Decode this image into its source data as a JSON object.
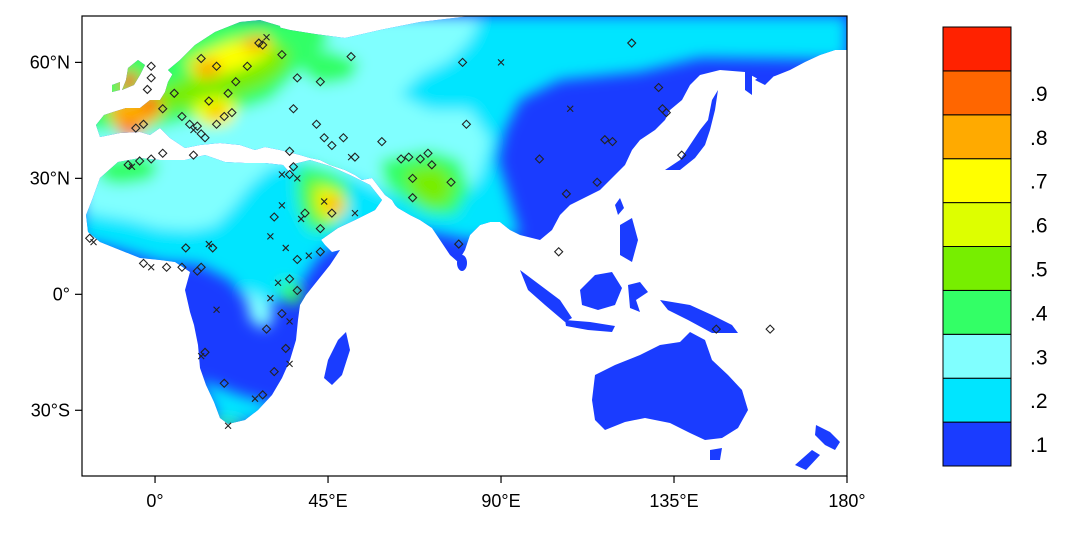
{
  "map": {
    "projection": "cylindrical-equidistant",
    "lon_range": [
      -19,
      180
    ],
    "lat_range": [
      -47,
      72
    ],
    "x_tick_labels": [
      {
        "lon": 0,
        "label": "0°"
      },
      {
        "lon": 45,
        "label": "45°E"
      },
      {
        "lon": 90,
        "label": "90°E"
      },
      {
        "lon": 135,
        "label": "135°E"
      },
      {
        "lon": 180,
        "label": "180°"
      }
    ],
    "y_tick_labels": [
      {
        "lat": 60,
        "label": "60°N"
      },
      {
        "lat": 30,
        "label": "30°N"
      },
      {
        "lat": 0,
        "label": "0°"
      },
      {
        "lat": -30,
        "label": "30°S"
      }
    ],
    "background_color": "#ffffff",
    "land_base_color": "#1a3cff",
    "colorbar": {
      "placement": "right",
      "bins": [
        {
          "color": "#1a3cff"
        },
        {
          "color": "#00e5ff"
        },
        {
          "color": "#80ffff"
        },
        {
          "color": "#33ff66"
        },
        {
          "color": "#77ee00"
        },
        {
          "color": "#ddff00"
        },
        {
          "color": "#ffff00"
        },
        {
          "color": "#ffaa00"
        },
        {
          "color": "#ff6600"
        },
        {
          "color": "#ff2200"
        }
      ],
      "labels": [
        ".1",
        ".2",
        ".3",
        ".4",
        ".5",
        ".6",
        ".7",
        ".8",
        ".9"
      ]
    },
    "marker_legend": {
      "diamond": "diamond-marker",
      "cross": "x-marker"
    },
    "markers": [
      {
        "lon": -17,
        "lat": 14.5,
        "type": "diamond"
      },
      {
        "lon": -16,
        "lat": 13.5,
        "type": "cross"
      },
      {
        "lon": -7,
        "lat": 33.5,
        "type": "diamond"
      },
      {
        "lon": -6,
        "lat": 33,
        "type": "cross"
      },
      {
        "lon": -4,
        "lat": 34.5,
        "type": "diamond"
      },
      {
        "lon": -1,
        "lat": 35,
        "type": "diamond"
      },
      {
        "lon": -5,
        "lat": 43,
        "type": "diamond"
      },
      {
        "lon": -3,
        "lat": 44,
        "type": "diamond"
      },
      {
        "lon": 2,
        "lat": 48,
        "type": "diamond"
      },
      {
        "lon": -2,
        "lat": 53,
        "type": "diamond"
      },
      {
        "lon": -1,
        "lat": 56,
        "type": "diamond"
      },
      {
        "lon": -1,
        "lat": 59,
        "type": "diamond"
      },
      {
        "lon": 5,
        "lat": 52,
        "type": "diamond"
      },
      {
        "lon": 7,
        "lat": 46,
        "type": "diamond"
      },
      {
        "lon": 9,
        "lat": 44,
        "type": "diamond"
      },
      {
        "lon": 10,
        "lat": 42.5,
        "type": "cross"
      },
      {
        "lon": 11,
        "lat": 43.5,
        "type": "diamond"
      },
      {
        "lon": 12,
        "lat": 41.5,
        "type": "diamond"
      },
      {
        "lon": 13,
        "lat": 40.5,
        "type": "diamond"
      },
      {
        "lon": 14,
        "lat": 50,
        "type": "diamond"
      },
      {
        "lon": 16,
        "lat": 44,
        "type": "diamond"
      },
      {
        "lon": 18,
        "lat": 46,
        "type": "diamond"
      },
      {
        "lon": 20,
        "lat": 47,
        "type": "diamond"
      },
      {
        "lon": 19,
        "lat": 52,
        "type": "diamond"
      },
      {
        "lon": 21,
        "lat": 55,
        "type": "diamond"
      },
      {
        "lon": 16,
        "lat": 59,
        "type": "diamond"
      },
      {
        "lon": 12,
        "lat": 61,
        "type": "diamond"
      },
      {
        "lon": 24,
        "lat": 59,
        "type": "diamond"
      },
      {
        "lon": 27,
        "lat": 65,
        "type": "diamond"
      },
      {
        "lon": 28,
        "lat": 64.5,
        "type": "diamond"
      },
      {
        "lon": 29,
        "lat": 66.5,
        "type": "cross"
      },
      {
        "lon": 33,
        "lat": 62,
        "type": "diamond"
      },
      {
        "lon": 37,
        "lat": 56,
        "type": "diamond"
      },
      {
        "lon": 43,
        "lat": 55,
        "type": "diamond"
      },
      {
        "lon": 51,
        "lat": 61.5,
        "type": "diamond"
      },
      {
        "lon": 36,
        "lat": 48,
        "type": "diamond"
      },
      {
        "lon": 42,
        "lat": 44,
        "type": "diamond"
      },
      {
        "lon": 44,
        "lat": 40.5,
        "type": "diamond"
      },
      {
        "lon": 49,
        "lat": 40.5,
        "type": "diamond"
      },
      {
        "lon": 46,
        "lat": 38.5,
        "type": "diamond"
      },
      {
        "lon": 52,
        "lat": 35.5,
        "type": "diamond"
      },
      {
        "lon": 51,
        "lat": 35.5,
        "type": "cross"
      },
      {
        "lon": 59,
        "lat": 39.5,
        "type": "diamond"
      },
      {
        "lon": 64,
        "lat": 35,
        "type": "diamond"
      },
      {
        "lon": 66,
        "lat": 35.5,
        "type": "diamond"
      },
      {
        "lon": 69,
        "lat": 35,
        "type": "diamond"
      },
      {
        "lon": 71,
        "lat": 36.5,
        "type": "diamond"
      },
      {
        "lon": 72,
        "lat": 33.5,
        "type": "diamond"
      },
      {
        "lon": 67,
        "lat": 30,
        "type": "diamond"
      },
      {
        "lon": 77,
        "lat": 29,
        "type": "diamond"
      },
      {
        "lon": 80,
        "lat": 60,
        "type": "diamond"
      },
      {
        "lon": 90,
        "lat": 60,
        "type": "cross"
      },
      {
        "lon": 81,
        "lat": 44,
        "type": "diamond"
      },
      {
        "lon": 67,
        "lat": 25,
        "type": "diamond"
      },
      {
        "lon": 79,
        "lat": 13,
        "type": "diamond"
      },
      {
        "lon": 35,
        "lat": 37,
        "type": "diamond"
      },
      {
        "lon": 36,
        "lat": 33,
        "type": "diamond"
      },
      {
        "lon": 35,
        "lat": 31,
        "type": "diamond"
      },
      {
        "lon": 33,
        "lat": 31,
        "type": "cross"
      },
      {
        "lon": 37,
        "lat": 30,
        "type": "cross"
      },
      {
        "lon": 39,
        "lat": 21,
        "type": "diamond"
      },
      {
        "lon": 44,
        "lat": 24,
        "type": "cross"
      },
      {
        "lon": 46,
        "lat": 21,
        "type": "diamond"
      },
      {
        "lon": 52,
        "lat": 21,
        "type": "cross"
      },
      {
        "lon": 43,
        "lat": 17,
        "type": "diamond"
      },
      {
        "lon": 38,
        "lat": 19.5,
        "type": "cross"
      },
      {
        "lon": 33,
        "lat": 23,
        "type": "cross"
      },
      {
        "lon": 31,
        "lat": 20,
        "type": "diamond"
      },
      {
        "lon": 30,
        "lat": 15,
        "type": "cross"
      },
      {
        "lon": 34,
        "lat": 12,
        "type": "cross"
      },
      {
        "lon": 37,
        "lat": 9,
        "type": "diamond"
      },
      {
        "lon": 40,
        "lat": 10,
        "type": "cross"
      },
      {
        "lon": 43,
        "lat": 11,
        "type": "diamond"
      },
      {
        "lon": 35,
        "lat": 4,
        "type": "diamond"
      },
      {
        "lon": 37,
        "lat": 1,
        "type": "diamond"
      },
      {
        "lon": 32,
        "lat": 3,
        "type": "cross"
      },
      {
        "lon": 30,
        "lat": -1,
        "type": "cross"
      },
      {
        "lon": 33,
        "lat": -5,
        "type": "diamond"
      },
      {
        "lon": 35,
        "lat": -7,
        "type": "cross"
      },
      {
        "lon": 29,
        "lat": -9,
        "type": "diamond"
      },
      {
        "lon": 34,
        "lat": -14,
        "type": "diamond"
      },
      {
        "lon": 35,
        "lat": -18,
        "type": "cross"
      },
      {
        "lon": 31,
        "lat": -20,
        "type": "diamond"
      },
      {
        "lon": 28,
        "lat": -26,
        "type": "diamond"
      },
      {
        "lon": 26,
        "lat": -27,
        "type": "cross"
      },
      {
        "lon": 18,
        "lat": -23,
        "type": "diamond"
      },
      {
        "lon": 19,
        "lat": -34,
        "type": "cross"
      },
      {
        "lon": 12,
        "lat": -16,
        "type": "cross"
      },
      {
        "lon": 13,
        "lat": -15,
        "type": "diamond"
      },
      {
        "lon": 16,
        "lat": -4,
        "type": "cross"
      },
      {
        "lon": 11,
        "lat": 6,
        "type": "diamond"
      },
      {
        "lon": 12,
        "lat": 7,
        "type": "diamond"
      },
      {
        "lon": 7,
        "lat": 7,
        "type": "diamond"
      },
      {
        "lon": 3,
        "lat": 7,
        "type": "diamond"
      },
      {
        "lon": -1,
        "lat": 7,
        "type": "cross"
      },
      {
        "lon": -3,
        "lat": 8,
        "type": "diamond"
      },
      {
        "lon": 8,
        "lat": 12,
        "type": "diamond"
      },
      {
        "lon": 14,
        "lat": 13,
        "type": "cross"
      },
      {
        "lon": 15,
        "lat": 12,
        "type": "diamond"
      },
      {
        "lon": 10,
        "lat": 36,
        "type": "diamond"
      },
      {
        "lon": 2,
        "lat": 36.5,
        "type": "diamond"
      },
      {
        "lon": 100,
        "lat": 35,
        "type": "diamond"
      },
      {
        "lon": 107,
        "lat": 26,
        "type": "diamond"
      },
      {
        "lon": 108,
        "lat": 48,
        "type": "cross"
      },
      {
        "lon": 117,
        "lat": 40,
        "type": "diamond"
      },
      {
        "lon": 119,
        "lat": 39.5,
        "type": "diamond"
      },
      {
        "lon": 115,
        "lat": 29,
        "type": "diamond"
      },
      {
        "lon": 105,
        "lat": 11,
        "type": "diamond"
      },
      {
        "lon": 124,
        "lat": 65,
        "type": "diamond"
      },
      {
        "lon": 131,
        "lat": 53.5,
        "type": "diamond"
      },
      {
        "lon": 132,
        "lat": 48,
        "type": "diamond"
      },
      {
        "lon": 133,
        "lat": 47,
        "type": "diamond"
      },
      {
        "lon": 137,
        "lat": 36,
        "type": "diamond"
      },
      {
        "lon": 146,
        "lat": -9,
        "type": "diamond"
      },
      {
        "lon": 160,
        "lat": -9,
        "type": "diamond"
      }
    ]
  }
}
